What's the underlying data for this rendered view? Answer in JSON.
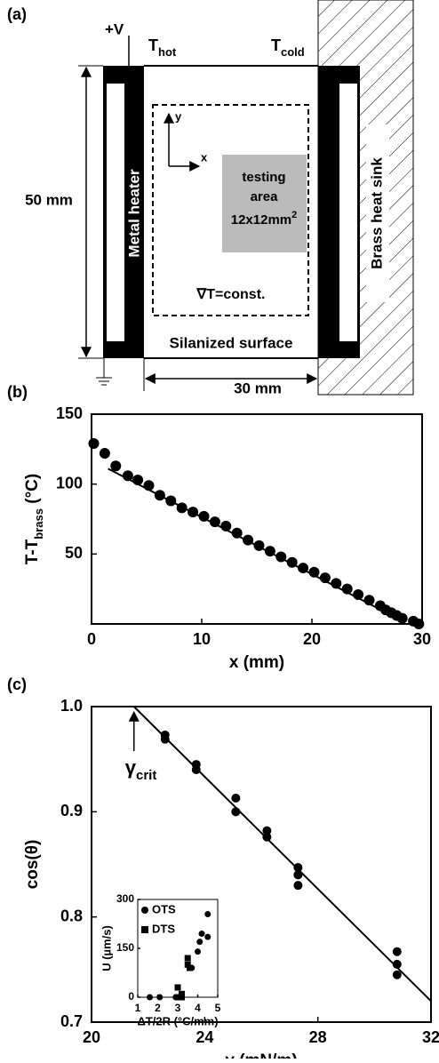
{
  "diagram": {
    "panel_label": "(a)",
    "voltage": "+V",
    "t_hot": {
      "main": "T",
      "sub": "hot"
    },
    "t_cold": {
      "main": "T",
      "sub": "cold"
    },
    "height": "50 mm",
    "width": "30 mm",
    "heater": "Metal heater",
    "sink": "Brass heat sink",
    "axis_y": "y",
    "axis_x": "x",
    "testing": [
      "testing",
      "area"
    ],
    "size": {
      "main": "12x12mm",
      "sup": "2"
    },
    "gradient": "∇T=const.",
    "surface": "Silanized surface"
  },
  "chart_data": [
    {
      "type": "scatter",
      "panel_label": "(b)",
      "x_label": "x (mm)",
      "y_label": {
        "main": "T-T",
        "sub": "brass",
        "rest": " (°C)"
      },
      "x": [
        0.2,
        1.2,
        2.2,
        3.3,
        4.2,
        5.2,
        6.2,
        7.2,
        8.2,
        9.2,
        10.2,
        11.2,
        12.2,
        13.2,
        14.2,
        15.2,
        16.2,
        17.2,
        18.2,
        19.2,
        20.2,
        21.2,
        22.2,
        23.2,
        24.2,
        25.2,
        26.2,
        26.7,
        27.2,
        27.7,
        28.2,
        29.2,
        29.7
      ],
      "values": [
        129,
        122,
        113,
        106,
        103,
        99,
        92,
        88,
        83,
        80,
        77,
        73,
        70,
        65,
        60,
        56,
        52,
        48,
        44,
        40,
        37,
        33,
        29,
        25,
        21,
        17,
        13,
        10,
        8,
        6,
        4,
        2,
        0
      ],
      "fit_line": {
        "x": [
          1.5,
          28
        ],
        "values": [
          111,
          3
        ]
      },
      "xlim": [
        0,
        30
      ],
      "xticks": [
        0,
        10,
        20,
        30
      ],
      "ylim": [
        0,
        150
      ],
      "yticks": [
        50,
        100,
        150
      ],
      "color": "#000000"
    },
    {
      "type": "scatter",
      "panel_label": "(c)",
      "x_label": {
        "main": "γ",
        "rest": "  (mN/m)"
      },
      "y_label": "cos(θ)",
      "x": [
        22.6,
        22.6,
        23.7,
        23.7,
        25.1,
        25.1,
        26.2,
        26.2,
        27.3,
        27.3,
        27.3,
        30.8,
        30.8,
        30.8
      ],
      "values": [
        0.973,
        0.969,
        0.945,
        0.94,
        0.913,
        0.9,
        0.882,
        0.876,
        0.847,
        0.84,
        0.83,
        0.767,
        0.755,
        0.745
      ],
      "fit_line": {
        "x": [
          21.5,
          32
        ],
        "values": [
          1.0,
          0.72
        ]
      },
      "annotation": {
        "text": {
          "main": "γ",
          "sub": "crit"
        },
        "x": 21.5
      },
      "xlim": [
        20,
        32
      ],
      "xticks": [
        20,
        24,
        28,
        32
      ],
      "ylim": [
        0.7,
        1.0
      ],
      "yticks": [
        {
          "value": 1.0,
          "label": "1.0"
        },
        0.9,
        0.8,
        0.7
      ],
      "color": "#000000"
    },
    {
      "type": "scatter",
      "x_label": "ΔT/2R (°C/mm)",
      "y_label": "U (µm/s)",
      "series": [
        {
          "name": "OTS",
          "marker": "circle",
          "x": [
            1.6,
            2.1,
            2.9,
            3.1,
            3.7,
            4.0,
            4.1,
            4.2,
            4.5,
            4.5
          ],
          "values": [
            0,
            0,
            0,
            0,
            90,
            140,
            170,
            195,
            185,
            255
          ]
        },
        {
          "name": "DTS",
          "marker": "square",
          "x": [
            3.0,
            3.0,
            3.2,
            3.2,
            3.5,
            3.5,
            3.6
          ],
          "values": [
            30,
            0,
            0,
            10,
            100,
            120,
            90
          ]
        }
      ],
      "xlim": [
        1,
        5
      ],
      "xticks": [
        1,
        2,
        3,
        4,
        5
      ],
      "ylim": [
        0,
        300
      ],
      "yticks": [
        0,
        150,
        300
      ],
      "color": "#000000"
    }
  ]
}
